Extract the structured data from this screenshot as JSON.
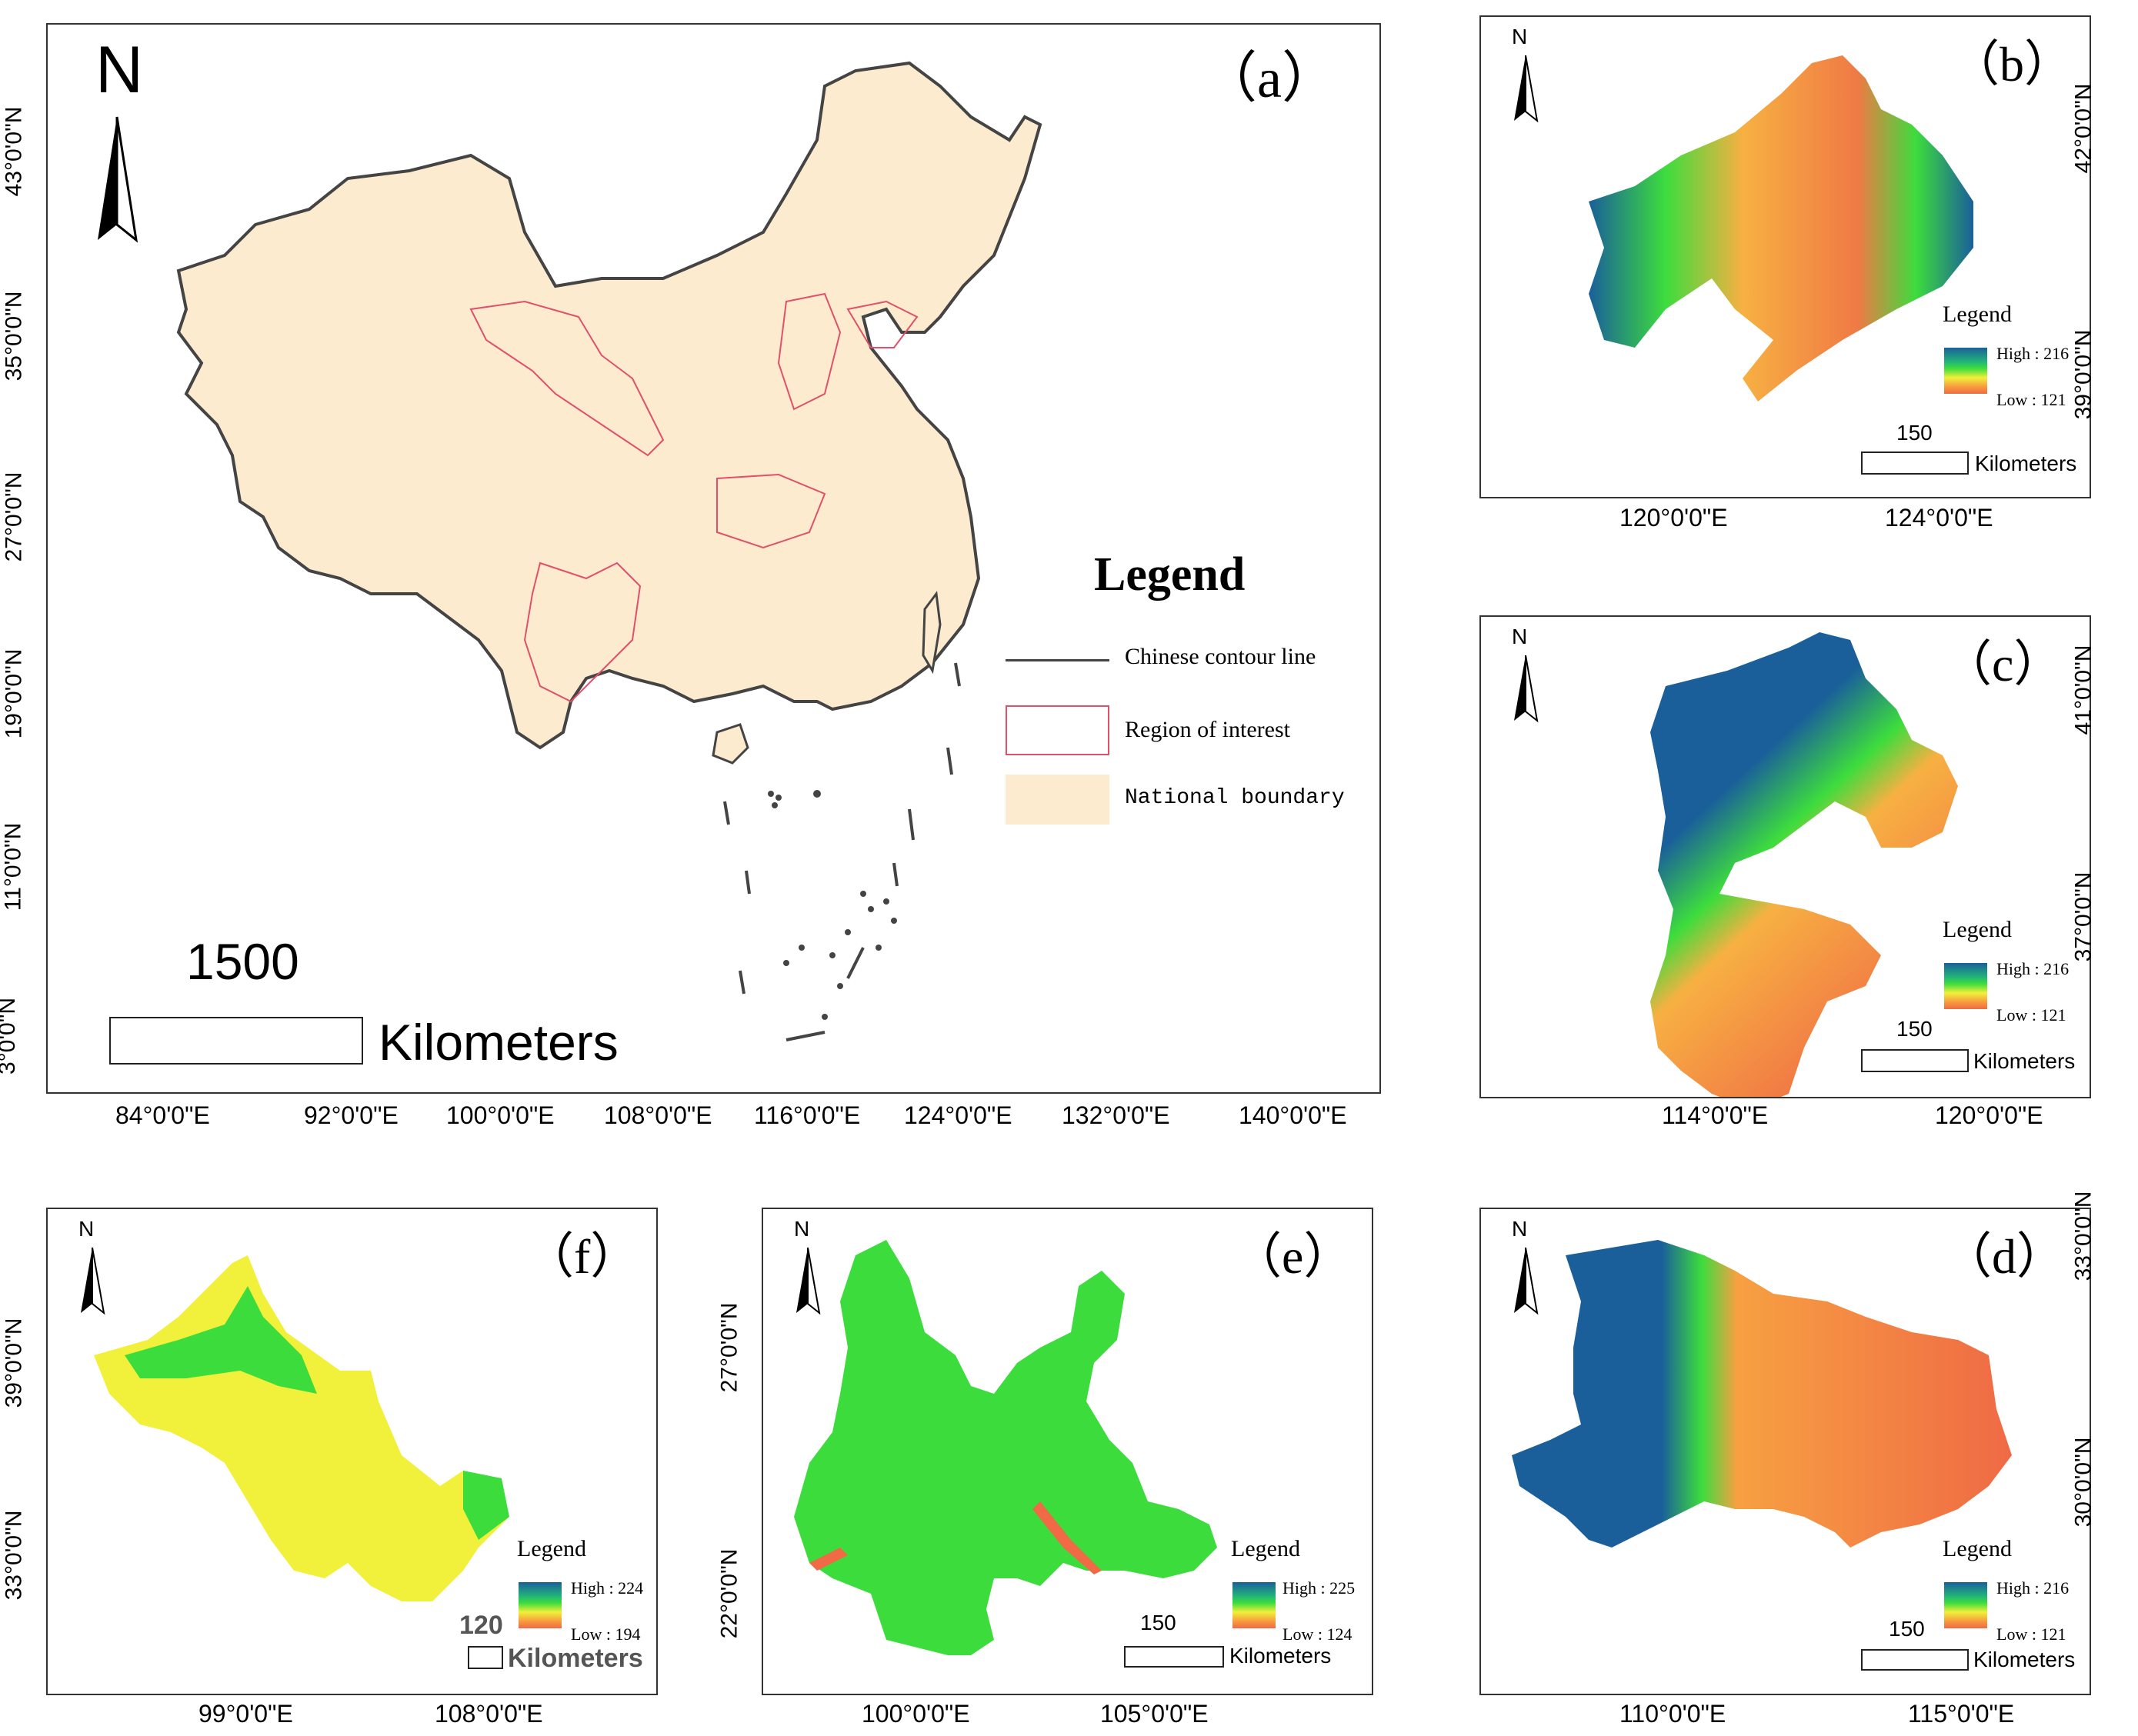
{
  "panels": {
    "a": {
      "label": "（a）",
      "x_ticks": [
        "84°0'0\"E",
        "92°0'0\"E",
        "100°0'0\"E",
        "108°0'0\"E",
        "116°0'0\"E",
        "124°0'0\"E",
        "132°0'0\"E",
        "140°0'0\"E"
      ],
      "y_ticks": [
        "43°0'0\"N",
        "35°0'0\"N",
        "27°0'0\"N",
        "19°0'0\"N",
        "11°0'0\"N",
        "3°0'0\"N"
      ],
      "north": "N",
      "legend": {
        "title": "Legend",
        "items": [
          "Chinese contour line",
          "Region of interest",
          "National boundary"
        ]
      },
      "scale": {
        "value": "1500",
        "unit": "Kilometers"
      }
    },
    "b": {
      "label": "（b）",
      "x_ticks": [
        "120°0'0\"E",
        "124°0'0\"E"
      ],
      "y_ticks": [
        "42°0'0\"N",
        "39°0'0\"N"
      ],
      "north": "N",
      "legend": {
        "title": "Legend",
        "high": "High : 216",
        "low": "Low : 121"
      },
      "scale": {
        "value": "150",
        "unit": "Kilometers"
      }
    },
    "c": {
      "label": "（c）",
      "x_ticks": [
        "114°0'0\"E",
        "120°0'0\"E"
      ],
      "y_ticks": [
        "41°0'0\"N",
        "37°0'0\"N"
      ],
      "north": "N",
      "legend": {
        "title": "Legend",
        "high": "High : 216",
        "low": "Low : 121"
      },
      "scale": {
        "value": "150",
        "unit": "Kilometers"
      }
    },
    "d": {
      "label": "（d）",
      "x_ticks": [
        "110°0'0\"E",
        "115°0'0\"E"
      ],
      "y_ticks": [
        "33°0'0\"N",
        "30°0'0\"N"
      ],
      "north": "N",
      "legend": {
        "title": "Legend",
        "high": "High : 216",
        "low": "Low : 121"
      },
      "scale": {
        "value": "150",
        "unit": "Kilometers"
      }
    },
    "e": {
      "label": "（e）",
      "x_ticks": [
        "100°0'0\"E",
        "105°0'0\"E"
      ],
      "y_ticks": [
        "27°0'0\"N",
        "22°0'0\"N"
      ],
      "north": "N",
      "legend": {
        "title": "Legend",
        "high": "High : 225",
        "low": "Low : 124"
      },
      "scale": {
        "value": "150",
        "unit": "Kilometers"
      }
    },
    "f": {
      "label": "（f）",
      "x_ticks": [
        "99°0'0\"E",
        "108°0'0\"E"
      ],
      "y_ticks": [
        "39°0'0\"N",
        "33°0'0\"N"
      ],
      "north": "N",
      "legend": {
        "title": "Legend",
        "high": "High : 224",
        "low": "Low : 194"
      },
      "scale": {
        "value": "120",
        "unit": "Kilometers"
      }
    }
  },
  "colors": {
    "national_fill": "#fdebd0",
    "contour_line": "#444444",
    "region_line": "#e0506a",
    "ramp_high": "#1a5f9a",
    "ramp_low": "#ef6a45"
  }
}
